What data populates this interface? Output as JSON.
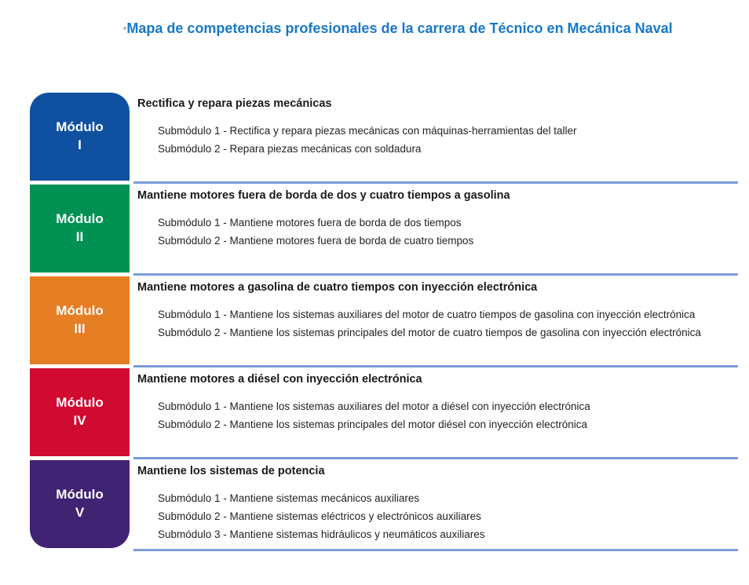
{
  "page": {
    "title": "Mapa de competencias profesionales de la carrera de Técnico en Mecánica Naval"
  },
  "colors": {
    "title_blue": "#1878c8",
    "separator_blue": "#7b9cd9",
    "body_text": "#231f20"
  },
  "modules": [
    {
      "label": "Módulo",
      "numeral": "I",
      "color": "#0f51a0",
      "title": "Rectifica y repara piezas mecánicas",
      "submodules": [
        "Submódulo 1 - Rectifica y repara piezas mecánicas con máquinas-herramientas del taller",
        "Submódulo 2 - Repara piezas mecánicas con soldadura"
      ]
    },
    {
      "label": "Módulo",
      "numeral": "II",
      "color": "#019253",
      "title": "Mantiene motores fuera de borda de dos y cuatro tiempos a gasolina",
      "submodules": [
        "Submódulo 1 - Mantiene motores fuera de borda de dos tiempos",
        "Submódulo 2 - Mantiene motores fuera de borda de cuatro tiempos"
      ]
    },
    {
      "label": "Módulo",
      "numeral": "III",
      "color": "#e67e24",
      "title": "Mantiene motores a gasolina de cuatro tiempos con inyección electrónica",
      "submodules": [
        "Submódulo 1 - Mantiene los sistemas auxiliares del motor de cuatro tiempos de gasolina con inyección electrónica",
        "Submódulo 2 - Mantiene los sistemas principales del motor de cuatro tiempos de gasolina con inyección electrónica"
      ]
    },
    {
      "label": "Módulo",
      "numeral": "IV",
      "color": "#d00a30",
      "title": "Mantiene motores a diésel con inyección electrónica",
      "submodules": [
        "Submódulo 1 - Mantiene los sistemas auxiliares del motor a diésel con inyección electrónica",
        "Submódulo 2 - Mantiene los sistemas principales del motor diésel con inyección electrónica"
      ]
    },
    {
      "label": "Módulo",
      "numeral": "V",
      "color": "#402372",
      "title": "Mantiene los sistemas de potencia",
      "submodules": [
        "Submódulo 1 - Mantiene sistemas mecánicos auxiliares",
        "Submódulo 2 - Mantiene sistemas eléctricos y electrónicos auxiliares",
        "Submódulo 3 - Mantiene sistemas hidráulicos y neumáticos auxiliares"
      ]
    }
  ]
}
